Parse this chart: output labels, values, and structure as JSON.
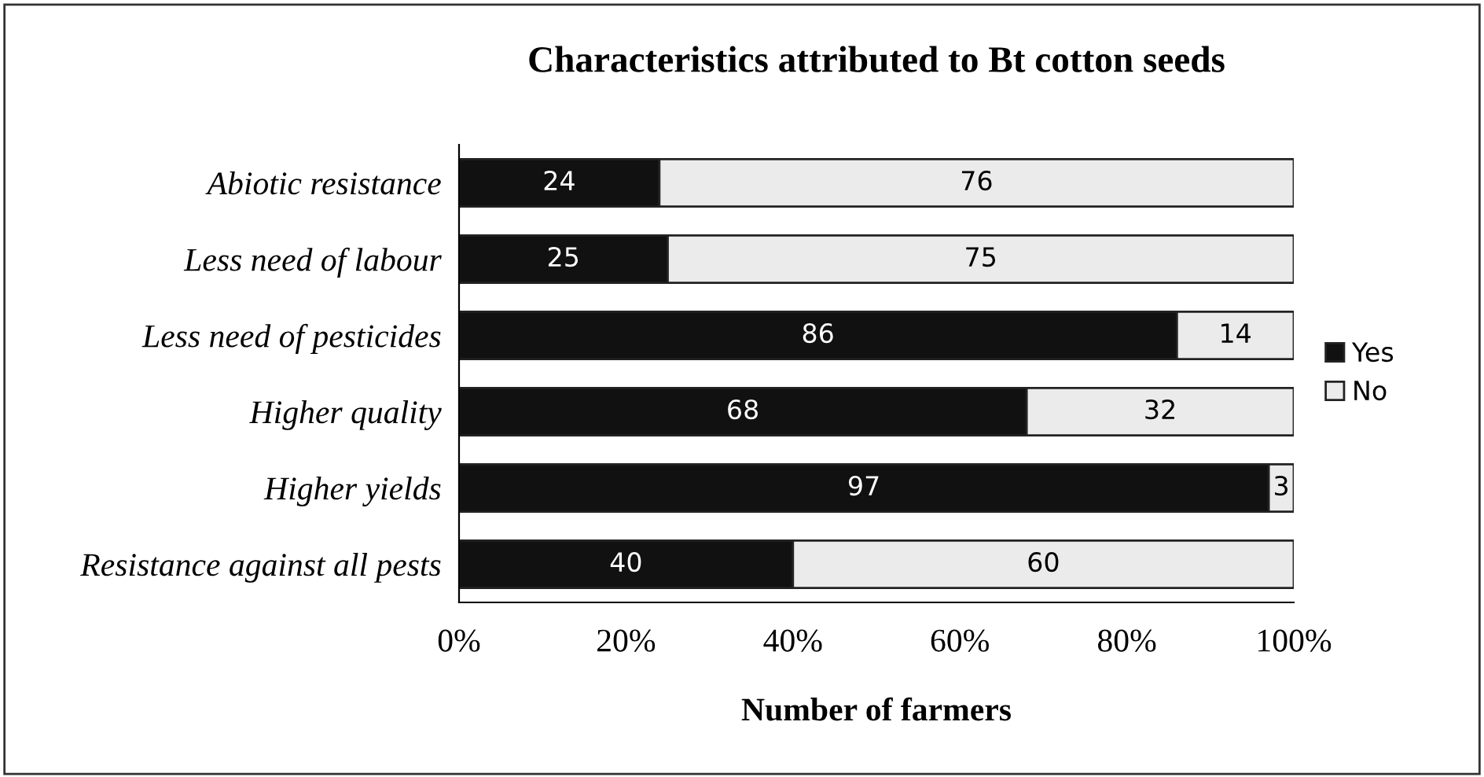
{
  "chart_data": {
    "type": "bar",
    "orientation": "horizontal",
    "stacked": true,
    "title": "Characteristics attributed to Bt cotton seeds",
    "xlabel": "Number of farmers",
    "categories": [
      "Abiotic resistance",
      "Less need of labour",
      "Less need of pesticides",
      "Higher quality",
      "Higher yields",
      "Resistance against all pests"
    ],
    "series": [
      {
        "name": "Yes",
        "color": "#111111",
        "values": [
          24,
          25,
          86,
          68,
          97,
          40
        ]
      },
      {
        "name": "No",
        "color": "#ebebeb",
        "values": [
          76,
          75,
          14,
          32,
          3,
          60
        ]
      }
    ],
    "xlim": [
      0,
      100
    ],
    "xticks": [
      {
        "value": 0,
        "label": "0%"
      },
      {
        "value": 20,
        "label": "20%"
      },
      {
        "value": 40,
        "label": "40%"
      },
      {
        "value": 60,
        "label": "60%"
      },
      {
        "value": 80,
        "label": "80%"
      },
      {
        "value": 100,
        "label": "100%"
      }
    ],
    "data_labels": true,
    "legend": "right",
    "grid": false
  }
}
